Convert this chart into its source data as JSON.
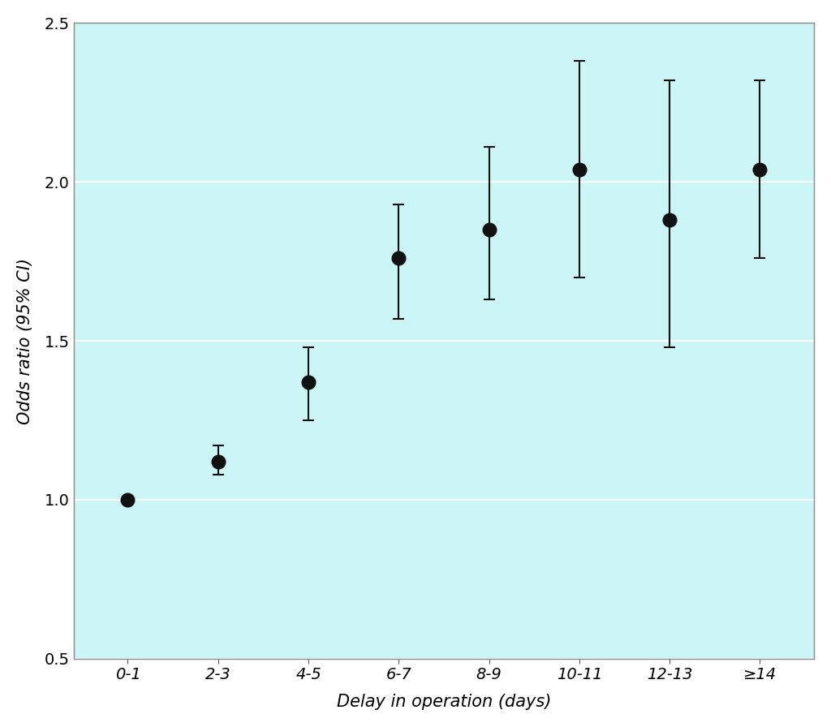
{
  "categories": [
    "0-1",
    "2-3",
    "4-5",
    "6-7",
    "8-9",
    "10-11",
    "12-13",
    "≥14"
  ],
  "or_values": [
    1.0,
    1.12,
    1.37,
    1.76,
    1.85,
    2.04,
    1.88,
    2.04
  ],
  "ci_lower": [
    1.0,
    1.08,
    1.25,
    1.57,
    1.63,
    1.7,
    1.48,
    1.76
  ],
  "ci_upper": [
    1.0,
    1.17,
    1.48,
    1.93,
    2.11,
    2.38,
    2.32,
    2.32
  ],
  "ylabel": "Odds ratio (95% CI)",
  "xlabel": "Delay in operation (days)",
  "ylim": [
    0.5,
    2.5
  ],
  "yticks": [
    0.5,
    1.0,
    1.5,
    2.0,
    2.5
  ],
  "background_color": "#ccf5f5",
  "plot_bg_color": "#ccf5f5",
  "marker_color": "#111111",
  "line_color": "#111111",
  "grid_color": "#ffffff",
  "title_fontsize": 15,
  "label_fontsize": 15,
  "tick_fontsize": 14,
  "marker_size": 12,
  "cap_size": 5,
  "line_width": 1.5
}
